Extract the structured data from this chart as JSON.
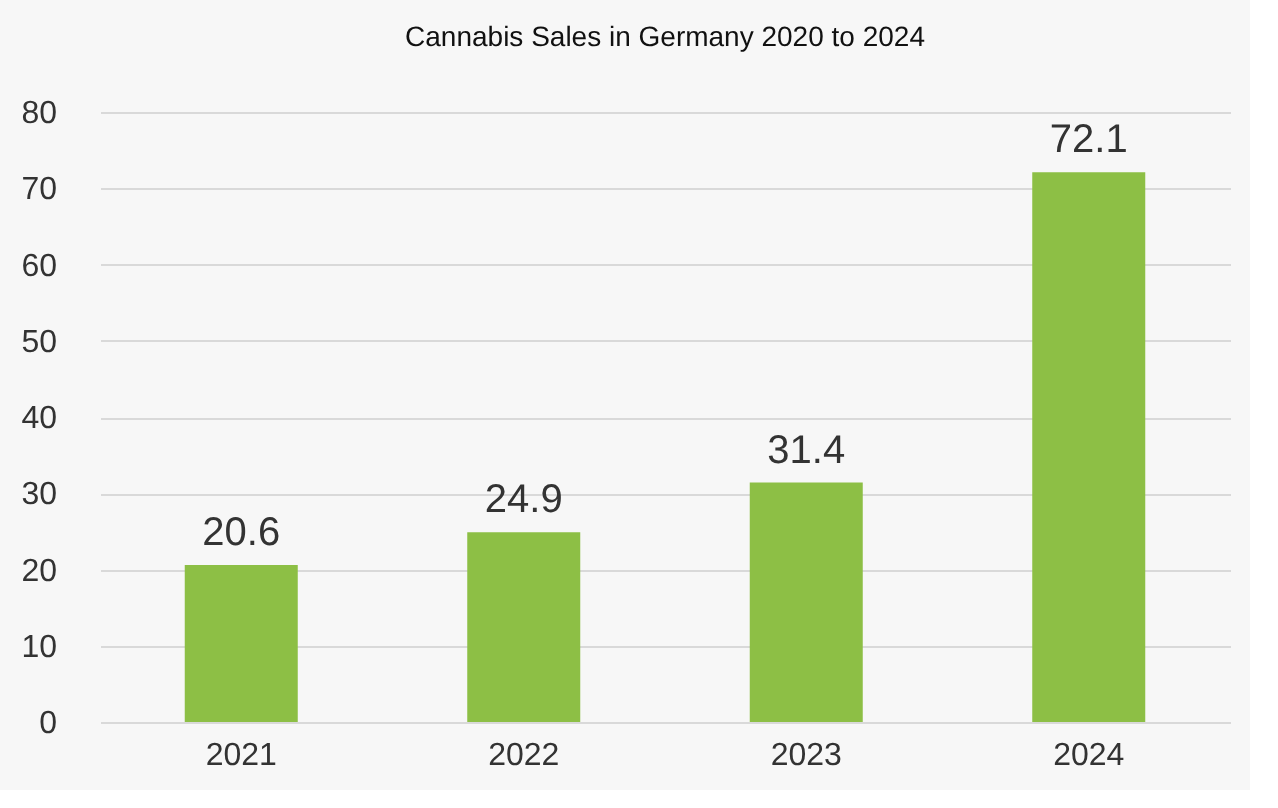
{
  "chart_data": {
    "type": "bar",
    "title": "Cannabis Sales in Germany 2020 to 2024",
    "categories": [
      "2021",
      "2022",
      "2023",
      "2024"
    ],
    "values": [
      20.6,
      24.9,
      31.4,
      72.1
    ],
    "color": "#8dbf45",
    "ylim": [
      0,
      80
    ],
    "yticks": [
      0,
      10,
      20,
      30,
      40,
      50,
      60,
      70,
      80
    ],
    "grid": "y",
    "data_labels": true
  }
}
